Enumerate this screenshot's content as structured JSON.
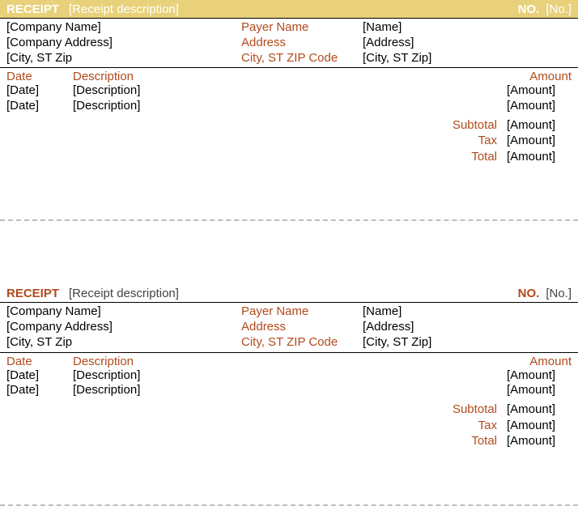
{
  "colors": {
    "accent": "#b14a1c",
    "highlight_bg": "#e8d17a",
    "text": "#000000",
    "divider": "#bfbfbf",
    "white": "#ffffff"
  },
  "receipts": [
    {
      "highlighted": true,
      "header": {
        "receipt_label": "RECEIPT",
        "description": "[Receipt description]",
        "no_label": "NO.",
        "no_value": "[No.]"
      },
      "company": {
        "name": "[Company Name]",
        "address": "[Company Address]",
        "city_st_zip": "[City, ST  Zip"
      },
      "payer_labels": {
        "name": "Payer Name",
        "address": "Address",
        "city_st_zip": "City, ST ZIP Code"
      },
      "payer": {
        "name": "[Name]",
        "address": "[Address]",
        "city_st_zip": "[City, ST  Zip]"
      },
      "columns": {
        "date": "Date",
        "description": "Description",
        "amount": "Amount"
      },
      "items": [
        {
          "date": "[Date]",
          "description": "[Description]",
          "amount": "[Amount]"
        },
        {
          "date": "[Date]",
          "description": "[Description]",
          "amount": "[Amount]"
        }
      ],
      "totals": {
        "subtotal_label": "Subtotal",
        "subtotal": "[Amount]",
        "tax_label": "Tax",
        "tax": "[Amount]",
        "total_label": "Total",
        "total": "[Amount]"
      }
    },
    {
      "highlighted": false,
      "header": {
        "receipt_label": "RECEIPT",
        "description": "[Receipt description]",
        "no_label": "NO.",
        "no_value": "[No.]"
      },
      "company": {
        "name": "[Company Name]",
        "address": "[Company Address]",
        "city_st_zip": "[City, ST  Zip"
      },
      "payer_labels": {
        "name": "Payer Name",
        "address": "Address",
        "city_st_zip": "City, ST ZIP Code"
      },
      "payer": {
        "name": "[Name]",
        "address": "[Address]",
        "city_st_zip": "[City, ST  Zip]"
      },
      "columns": {
        "date": "Date",
        "description": "Description",
        "amount": "Amount"
      },
      "items": [
        {
          "date": "[Date]",
          "description": "[Description]",
          "amount": "[Amount]"
        },
        {
          "date": "[Date]",
          "description": "[Description]",
          "amount": "[Amount]"
        }
      ],
      "totals": {
        "subtotal_label": "Subtotal",
        "subtotal": "[Amount]",
        "tax_label": "Tax",
        "tax": "[Amount]",
        "total_label": "Total",
        "total": "[Amount]"
      }
    }
  ]
}
